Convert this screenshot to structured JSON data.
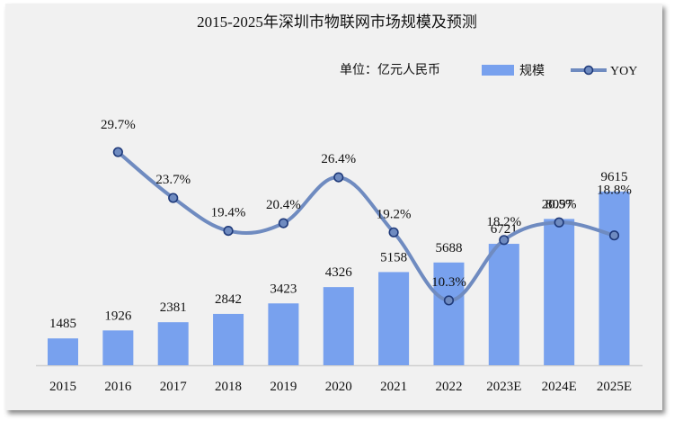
{
  "chart_data": {
    "type": "bar+line",
    "title": "2015-2025年深圳市物联网市场规模及预测",
    "unit_note": "单位：亿元人民币",
    "categories": [
      "2015",
      "2016",
      "2017",
      "2018",
      "2019",
      "2020",
      "2021",
      "2022",
      "2023E",
      "2024E",
      "2025E"
    ],
    "series": [
      {
        "name": "规模",
        "type": "bar",
        "axis": "primary",
        "color": "#78a1ee",
        "values": [
          1485,
          1926,
          2381,
          2842,
          3423,
          4326,
          5158,
          5688,
          6721,
          8097,
          9615
        ],
        "labels": [
          "1485",
          "1926",
          "2381",
          "2842",
          "3423",
          "4326",
          "5158",
          "5688",
          "6721",
          "8097",
          "9615"
        ]
      },
      {
        "name": "YOY",
        "type": "line",
        "axis": "secondary",
        "color": "#6f8bc0",
        "marker_color": "#1f3a7a",
        "values": [
          null,
          29.7,
          23.7,
          19.4,
          20.4,
          26.4,
          19.2,
          10.3,
          18.2,
          20.5,
          18.8
        ],
        "labels": [
          "",
          "29.7%",
          "23.7%",
          "19.4%",
          "20.4%",
          "26.4%",
          "19.2%",
          "10.3%",
          "18.2%",
          "20.5%",
          "18.8%"
        ]
      }
    ],
    "legend": {
      "position": "top-right",
      "items": [
        "规模",
        "YOY"
      ]
    },
    "grid": false,
    "xlabel": "",
    "ylabel": ""
  }
}
